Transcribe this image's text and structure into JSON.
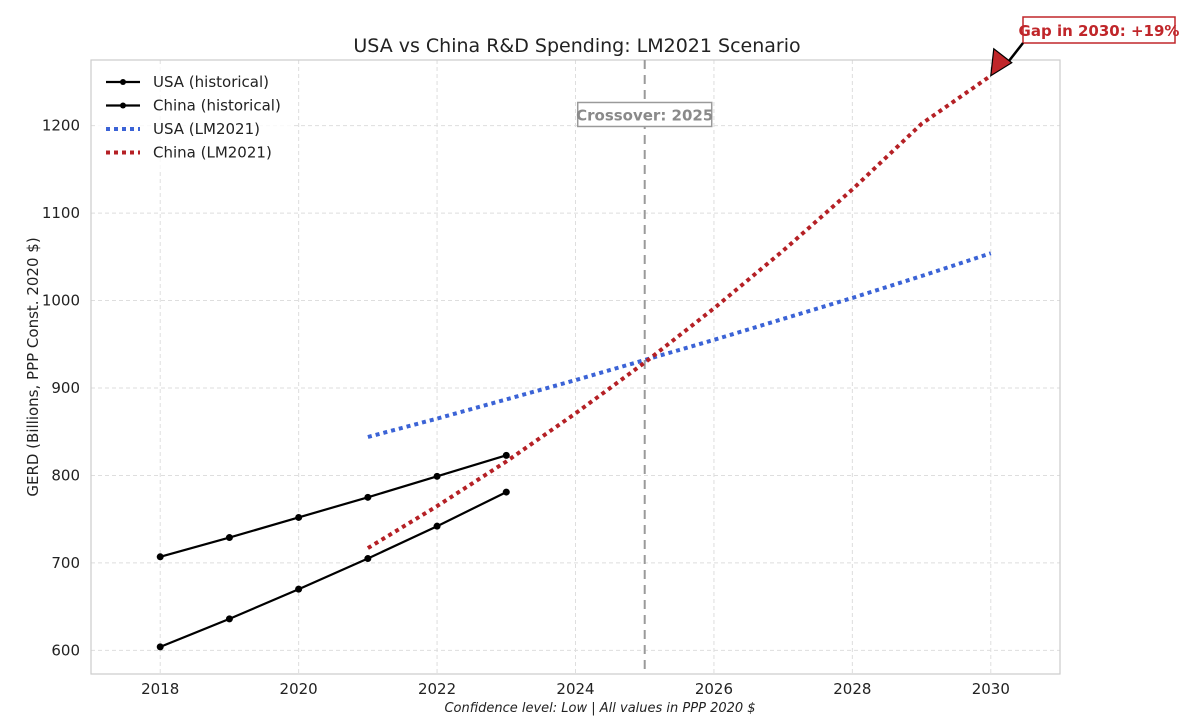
{
  "chart_data": {
    "type": "line",
    "title": "USA vs China R&D Spending: LM2021 Scenario",
    "xlabel": "Confidence level: Low | All values in PPP 2020 $",
    "ylabel": "GERD (Billions, PPP Const. 2020 $)",
    "xlim": [
      2017.0,
      2031.0
    ],
    "ylim": [
      573,
      1275
    ],
    "xticks": [
      2018,
      2020,
      2022,
      2024,
      2026,
      2028,
      2030
    ],
    "yticks": [
      600,
      700,
      800,
      900,
      1000,
      1100,
      1200
    ],
    "grid": true,
    "legend_position": "top-left",
    "series": [
      {
        "name": "USA (historical)",
        "style": "solid-marker",
        "color": "#000000",
        "x": [
          2018,
          2019,
          2020,
          2021,
          2022,
          2023
        ],
        "y": [
          707,
          729,
          752,
          775,
          799,
          823
        ]
      },
      {
        "name": "China (historical)",
        "style": "solid-marker",
        "color": "#000000",
        "x": [
          2018,
          2019,
          2020,
          2021,
          2022,
          2023
        ],
        "y": [
          604,
          636,
          670,
          705,
          742,
          781
        ]
      },
      {
        "name": "USA (LM2021)",
        "style": "dotted",
        "color": "#3b63d6",
        "x": [
          2021,
          2022,
          2023,
          2024,
          2025,
          2026,
          2027,
          2028,
          2029,
          2030
        ],
        "y": [
          844,
          865,
          887,
          909,
          932,
          955,
          979,
          1003,
          1028,
          1054
        ]
      },
      {
        "name": "China (LM2021)",
        "style": "dotted",
        "color": "#b52025",
        "x": [
          2021,
          2022,
          2023,
          2024,
          2025,
          2026,
          2027,
          2028,
          2029,
          2030
        ],
        "y": [
          717,
          765,
          816,
          871,
          929,
          991,
          1057,
          1127,
          1202,
          1257
        ]
      }
    ],
    "vline": {
      "x": 2025,
      "label": "Crossover: 2025",
      "label_y": 1215
    },
    "annotation": {
      "text": "Gap in 2030: +19%",
      "x": 2030,
      "y": 1257
    }
  }
}
